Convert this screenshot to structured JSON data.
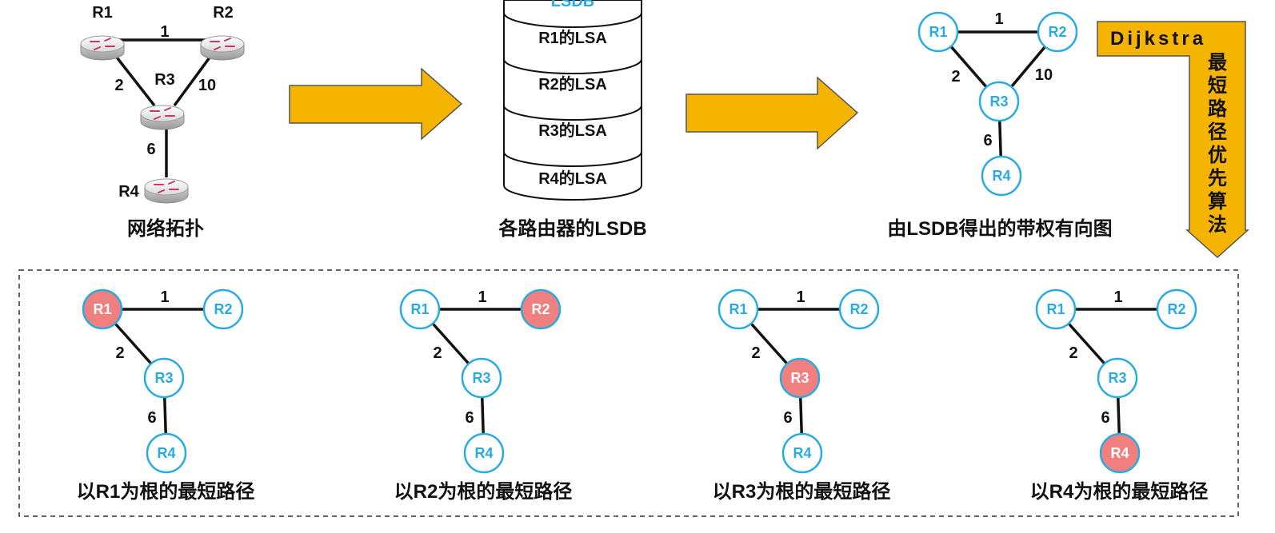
{
  "topology": {
    "caption": "网络拓扑",
    "routers": [
      "R1",
      "R2",
      "R3",
      "R4"
    ],
    "edges": [
      {
        "from": "R1",
        "to": "R2",
        "cost": "1"
      },
      {
        "from": "R1",
        "to": "R3",
        "cost": "2"
      },
      {
        "from": "R2",
        "to": "R3",
        "cost": "10"
      },
      {
        "from": "R3",
        "to": "R4",
        "cost": "6"
      }
    ]
  },
  "lsdb": {
    "top_label": "LSDB",
    "entries": [
      "R1的LSA",
      "R2的LSA",
      "R3的LSA",
      "R4的LSA"
    ],
    "caption": "各路由器的LSDB"
  },
  "graph": {
    "caption": "由LSDB得出的带权有向图"
  },
  "dijkstra": {
    "name": "Dijkstra",
    "chars": [
      "最",
      "短",
      "路",
      "径",
      "优",
      "先",
      "算",
      "法"
    ]
  },
  "trees": [
    {
      "root": "R1",
      "caption": "以R1为根的最短路径"
    },
    {
      "root": "R2",
      "caption": "以R2为根的最短路径"
    },
    {
      "root": "R3",
      "caption": "以R3为根的最短路径"
    },
    {
      "root": "R4",
      "caption": "以R4为根的最短路径"
    }
  ],
  "colors": {
    "node_stroke": "#29ABE2",
    "node_text": "#29ABE2",
    "root_fill": "#F08080",
    "root_text": "#ffffff",
    "arrow_fill": "#F4B400",
    "edge": "#111111"
  }
}
